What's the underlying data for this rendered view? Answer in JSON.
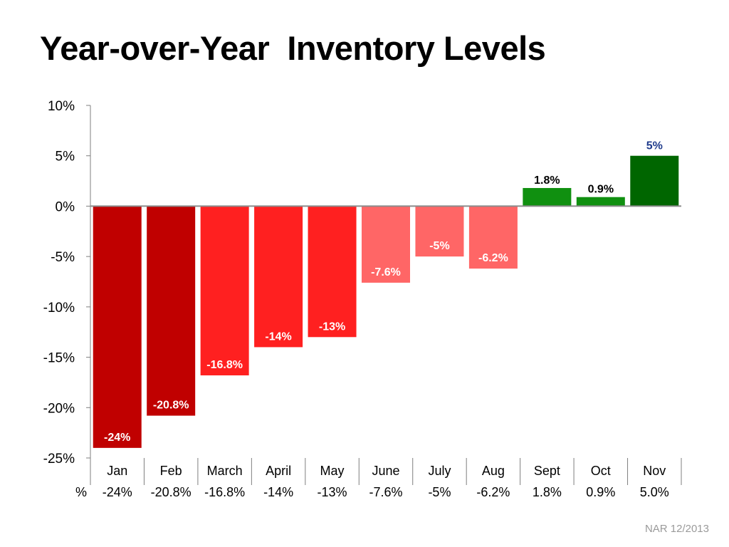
{
  "title": "Year-over-Year  Inventory Levels",
  "source": "NAR 12/2013",
  "chart_data": {
    "type": "bar",
    "title": "Year-over-Year  Inventory Levels",
    "categories": [
      "Jan",
      "Feb",
      "March",
      "April",
      "May",
      "June",
      "July",
      "Aug",
      "Sept",
      "Oct",
      "Nov"
    ],
    "values": [
      -24,
      -20.8,
      -16.8,
      -14,
      -13,
      -7.6,
      -5,
      -6.2,
      1.8,
      0.9,
      5
    ],
    "data_labels": [
      "-24%",
      "-20.8%",
      "-16.8%",
      "-14%",
      "-13%",
      "-7.6%",
      "-5%",
      "-6.2%",
      "1.8%",
      "0.9%",
      "5%"
    ],
    "colors": [
      "#c00000",
      "#c00000",
      "#ff2020",
      "#ff2020",
      "#ff2020",
      "#ff6666",
      "#ff6666",
      "#ff6666",
      "#109010",
      "#109010",
      "#006600"
    ],
    "label_colors": [
      "#ffffff",
      "#ffffff",
      "#ffffff",
      "#ffffff",
      "#ffffff",
      "#ffffff",
      "#ffffff",
      "#ffffff",
      "#000000",
      "#000000",
      "#1f3b8c"
    ],
    "ylim": [
      -25,
      10
    ],
    "y_ticks": [
      10,
      5,
      0,
      -5,
      -10,
      -15,
      -20,
      -25
    ],
    "y_tick_labels": [
      "10%",
      "5%",
      "0%",
      "-5%",
      "-10%",
      "-15%",
      "-20%",
      "-25%"
    ],
    "xlabel": "",
    "ylabel": "",
    "legend": "none",
    "table": {
      "row_label": "%",
      "values": [
        "-24%",
        "-20.8%",
        "-16.8%",
        "-14%",
        "-13%",
        "-7.6%",
        "-5%",
        "-6.2%",
        "1.8%",
        "0.9%",
        "5.0%"
      ]
    }
  }
}
